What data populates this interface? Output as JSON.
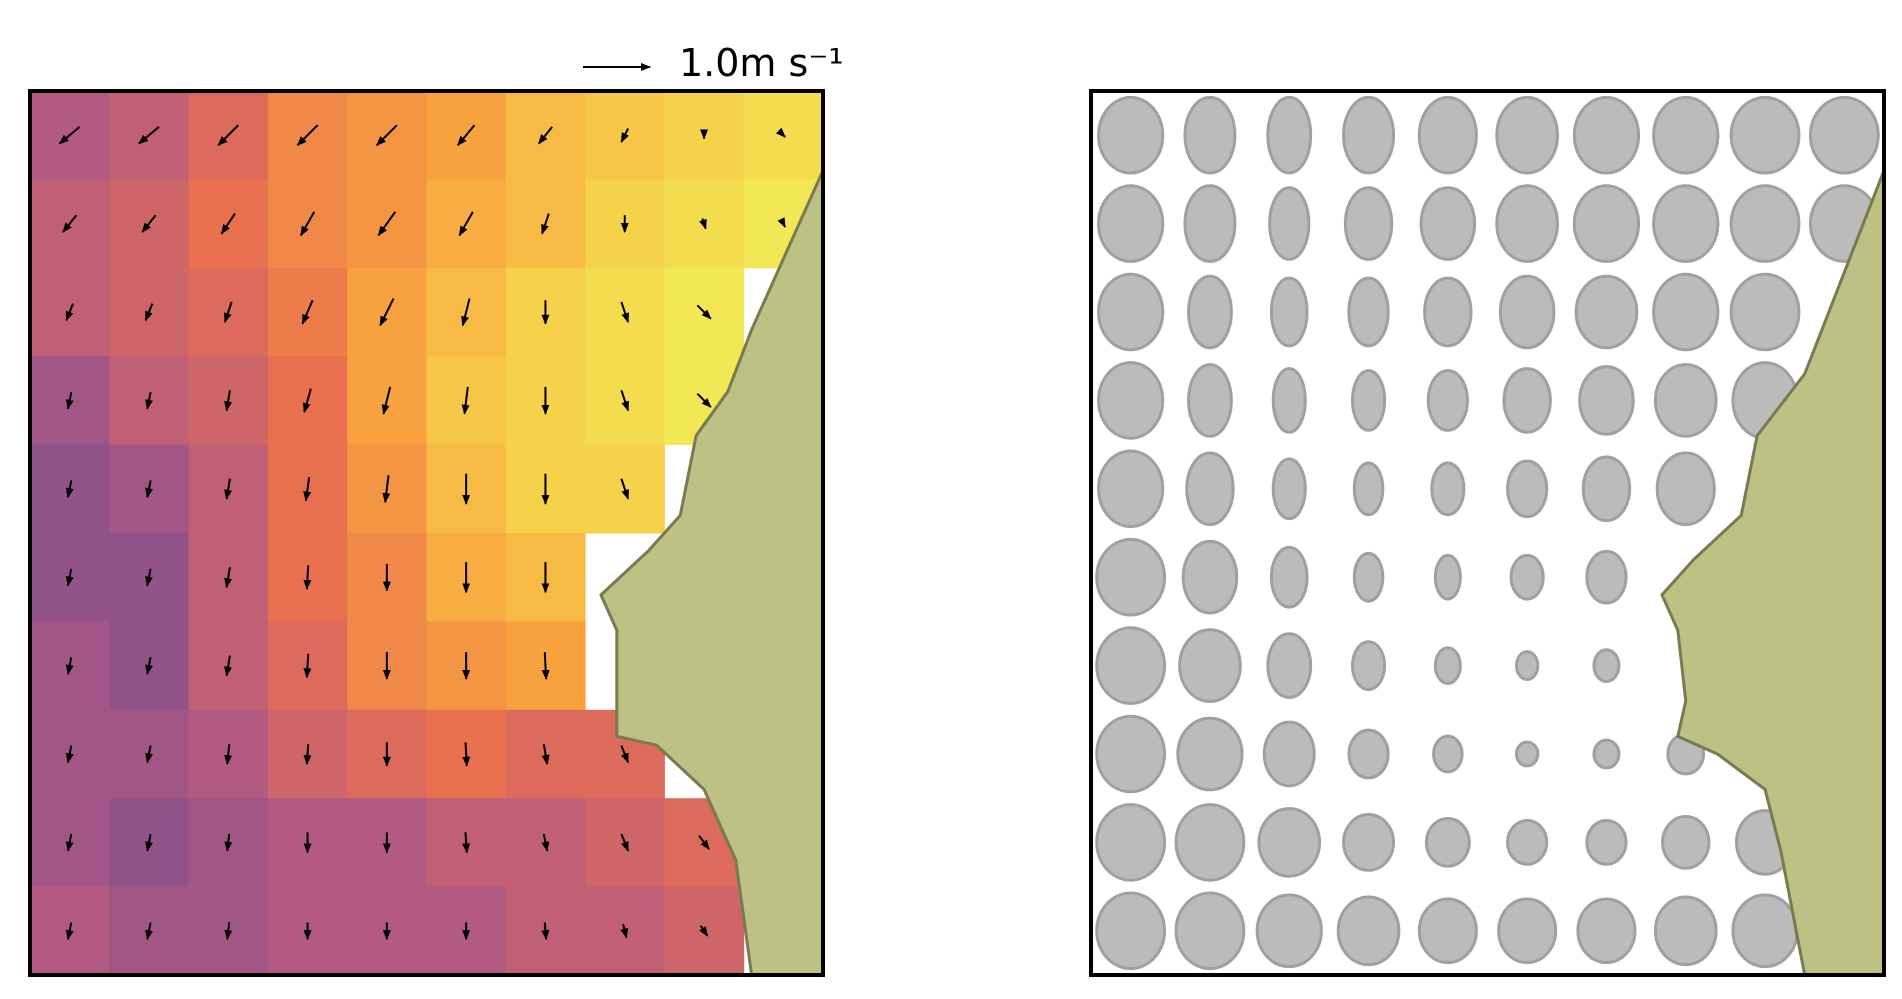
{
  "chart_data": [
    {
      "type": "quiver",
      "key_label": "1.0m s⁻¹",
      "key_value": 1.0,
      "colormap": [
        "#6e4a8e",
        "#b35a82",
        "#e9704f",
        "#f7a13f",
        "#f5d24a",
        "#eefc5e"
      ],
      "heat": [
        [
          0.2,
          0.25,
          0.35,
          0.5,
          0.55,
          0.6,
          0.7,
          0.75,
          0.8,
          0.85
        ],
        [
          0.25,
          0.3,
          0.4,
          0.5,
          0.55,
          0.65,
          0.7,
          0.8,
          0.85,
          0.9
        ],
        [
          0.25,
          0.3,
          0.35,
          0.45,
          0.6,
          0.7,
          0.8,
          0.85,
          0.9,
          null
        ],
        [
          0.15,
          0.25,
          0.3,
          0.4,
          0.6,
          0.75,
          0.8,
          0.85,
          0.9,
          null
        ],
        [
          0.1,
          0.15,
          0.25,
          0.4,
          0.55,
          0.7,
          0.8,
          0.8,
          null,
          null
        ],
        [
          0.1,
          0.1,
          0.25,
          0.4,
          0.5,
          0.65,
          0.7,
          null,
          null,
          null
        ],
        [
          0.15,
          0.1,
          0.25,
          0.35,
          0.5,
          0.55,
          0.6,
          null,
          null,
          null
        ],
        [
          0.15,
          0.15,
          0.2,
          0.3,
          0.35,
          0.4,
          0.35,
          0.35,
          null,
          null
        ],
        [
          0.15,
          0.1,
          0.15,
          0.2,
          0.2,
          0.25,
          0.25,
          0.3,
          0.35,
          null
        ],
        [
          0.2,
          0.15,
          0.15,
          0.2,
          0.2,
          0.2,
          0.25,
          0.25,
          0.3,
          null
        ]
      ],
      "u": [
        [
          -0.3,
          -0.3,
          -0.3,
          -0.3,
          -0.3,
          -0.25,
          -0.2,
          -0.1,
          0,
          0.05
        ],
        [
          -0.2,
          -0.2,
          -0.2,
          -0.2,
          -0.25,
          -0.2,
          -0.1,
          0,
          0.05,
          0.05
        ],
        [
          -0.1,
          -0.1,
          -0.1,
          -0.15,
          -0.2,
          -0.1,
          0,
          0.1,
          0.2,
          null
        ],
        [
          -0.05,
          -0.05,
          -0.05,
          -0.1,
          -0.1,
          -0.05,
          0,
          0.1,
          0.2,
          null
        ],
        [
          -0.05,
          -0.05,
          -0.05,
          -0.05,
          -0.05,
          0,
          0,
          0.1,
          null,
          null
        ],
        [
          -0.05,
          -0.05,
          -0.05,
          -0.02,
          0,
          0,
          0,
          null,
          null,
          null
        ],
        [
          -0.05,
          -0.05,
          -0.05,
          -0.02,
          0,
          0,
          0.02,
          null,
          null,
          null
        ],
        [
          -0.05,
          -0.05,
          -0.03,
          -0.02,
          0,
          0.02,
          0.05,
          0.1,
          null,
          null
        ],
        [
          -0.05,
          -0.05,
          -0.03,
          0,
          0,
          0.02,
          0.05,
          0.1,
          0.15,
          null
        ],
        [
          -0.05,
          -0.05,
          -0.03,
          0,
          0,
          0,
          0.02,
          0.05,
          0.1,
          null
        ]
      ],
      "v": [
        [
          -0.25,
          -0.25,
          -0.3,
          -0.3,
          -0.3,
          -0.3,
          -0.25,
          -0.2,
          -0.1,
          -0.05
        ],
        [
          -0.25,
          -0.25,
          -0.3,
          -0.35,
          -0.35,
          -0.35,
          -0.3,
          -0.25,
          -0.15,
          -0.1
        ],
        [
          -0.25,
          -0.25,
          -0.3,
          -0.35,
          -0.4,
          -0.4,
          -0.35,
          -0.3,
          -0.2,
          null
        ],
        [
          -0.25,
          -0.25,
          -0.3,
          -0.35,
          -0.4,
          -0.4,
          -0.4,
          -0.3,
          -0.2,
          null
        ],
        [
          -0.25,
          -0.25,
          -0.3,
          -0.35,
          -0.4,
          -0.45,
          -0.45,
          -0.3,
          null,
          null
        ],
        [
          -0.25,
          -0.25,
          -0.3,
          -0.35,
          -0.4,
          -0.45,
          -0.45,
          null,
          null,
          null
        ],
        [
          -0.25,
          -0.25,
          -0.3,
          -0.35,
          -0.4,
          -0.4,
          -0.4,
          null,
          null,
          null
        ],
        [
          -0.25,
          -0.25,
          -0.3,
          -0.3,
          -0.35,
          -0.35,
          -0.3,
          -0.25,
          null,
          null
        ],
        [
          -0.25,
          -0.25,
          -0.25,
          -0.3,
          -0.3,
          -0.3,
          -0.25,
          -0.25,
          -0.2,
          null
        ],
        [
          -0.25,
          -0.25,
          -0.25,
          -0.25,
          -0.25,
          -0.25,
          -0.25,
          -0.2,
          -0.15,
          null
        ]
      ]
    },
    {
      "type": "ellipses",
      "color": "#bbbbbb",
      "width": [
        [
          0.9,
          0.7,
          0.6,
          0.7,
          0.8,
          0.85,
          0.9,
          0.9,
          0.95,
          0.95
        ],
        [
          0.9,
          0.7,
          0.55,
          0.65,
          0.75,
          0.85,
          0.9,
          0.9,
          0.95,
          0.95
        ],
        [
          0.9,
          0.6,
          0.5,
          0.55,
          0.65,
          0.75,
          0.85,
          0.9,
          0.95,
          null
        ],
        [
          0.9,
          0.6,
          0.45,
          0.45,
          0.55,
          0.65,
          0.75,
          0.85,
          0.9,
          null
        ],
        [
          0.9,
          0.65,
          0.45,
          0.4,
          0.45,
          0.55,
          0.65,
          0.8,
          null,
          null
        ],
        [
          0.95,
          0.75,
          0.5,
          0.4,
          0.35,
          0.45,
          0.55,
          null,
          null,
          null
        ],
        [
          0.95,
          0.85,
          0.6,
          0.45,
          0.35,
          0.3,
          0.35,
          null,
          null,
          null
        ],
        [
          0.95,
          0.9,
          0.7,
          0.55,
          0.4,
          0.3,
          0.35,
          0.5,
          null,
          null
        ],
        [
          0.95,
          0.95,
          0.85,
          0.7,
          0.6,
          0.55,
          0.55,
          0.65,
          0.8,
          null
        ],
        [
          0.95,
          0.95,
          0.9,
          0.85,
          0.8,
          0.8,
          0.8,
          0.85,
          0.9,
          null
        ]
      ],
      "height": [
        [
          0.95,
          0.95,
          0.95,
          0.95,
          0.95,
          0.95,
          0.95,
          0.95,
          0.95,
          0.95
        ],
        [
          0.95,
          0.95,
          0.9,
          0.9,
          0.9,
          0.95,
          0.95,
          0.95,
          0.95,
          0.95
        ],
        [
          0.95,
          0.9,
          0.85,
          0.85,
          0.85,
          0.9,
          0.9,
          0.95,
          0.95,
          null
        ],
        [
          0.95,
          0.9,
          0.8,
          0.75,
          0.75,
          0.8,
          0.85,
          0.9,
          0.95,
          null
        ],
        [
          0.95,
          0.9,
          0.75,
          0.65,
          0.65,
          0.7,
          0.8,
          0.9,
          null,
          null
        ],
        [
          0.95,
          0.9,
          0.75,
          0.6,
          0.55,
          0.55,
          0.65,
          null,
          null,
          null
        ],
        [
          0.95,
          0.9,
          0.8,
          0.6,
          0.45,
          0.35,
          0.4,
          null,
          null,
          null
        ],
        [
          0.95,
          0.9,
          0.8,
          0.6,
          0.45,
          0.3,
          0.35,
          0.5,
          null,
          null
        ],
        [
          0.95,
          0.95,
          0.85,
          0.7,
          0.6,
          0.55,
          0.55,
          0.65,
          0.8,
          null
        ],
        [
          0.95,
          0.95,
          0.9,
          0.85,
          0.8,
          0.8,
          0.8,
          0.85,
          0.9,
          null
        ]
      ]
    }
  ]
}
